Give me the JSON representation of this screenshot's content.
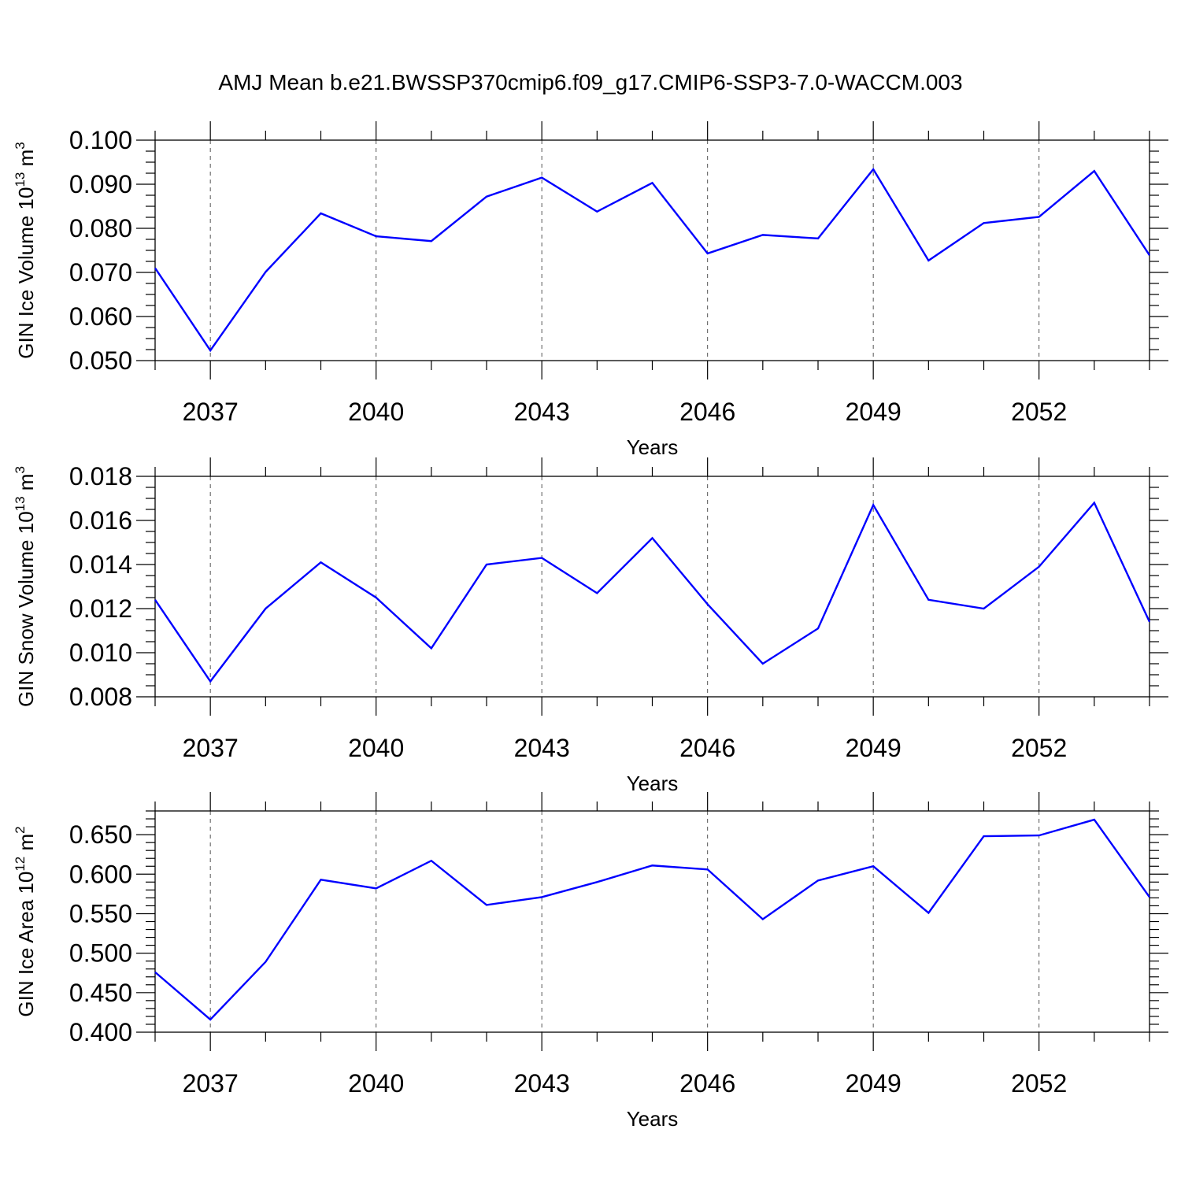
{
  "title": "AMJ Mean b.e21.BWSSP370cmip6.f09_g17.CMIP6-SSP3-7.0-WACCM.003",
  "colors": {
    "line": "#0000ff",
    "axis": "#000000",
    "grid": "#555555"
  },
  "chart_data": [
    {
      "type": "line",
      "ylabel": {
        "text": "GIN Ice Volume 10",
        "exp": "13",
        "unit": " m",
        "unit_exp": "3"
      },
      "xlabel": "Years",
      "xlim": [
        2036,
        2054
      ],
      "ylim": [
        0.05,
        0.1
      ],
      "x_ticks": [
        2037,
        2040,
        2043,
        2046,
        2049,
        2052
      ],
      "x_tick_labels": [
        "2037",
        "2040",
        "2043",
        "2046",
        "2049",
        "2052"
      ],
      "y_ticks": [
        0.05,
        0.06,
        0.07,
        0.08,
        0.09,
        0.1
      ],
      "y_tick_labels": [
        "0.050",
        "0.060",
        "0.070",
        "0.080",
        "0.090",
        "0.100"
      ],
      "y_minor_step": 0.0025,
      "grid": "vertical dashed at major x ticks",
      "series": [
        {
          "x": [
            2036,
            2037,
            2038,
            2039,
            2040,
            2041,
            2042,
            2043,
            2044,
            2045,
            2046,
            2047,
            2048,
            2049,
            2050,
            2051,
            2052,
            2053,
            2054
          ],
          "values": [
            0.071,
            0.0523,
            0.0701,
            0.0834,
            0.0782,
            0.0771,
            0.0872,
            0.0915,
            0.0838,
            0.0903,
            0.0743,
            0.0785,
            0.0777,
            0.0934,
            0.0727,
            0.0812,
            0.0826,
            0.093,
            0.0739
          ]
        }
      ]
    },
    {
      "type": "line",
      "ylabel": {
        "text": "GIN Snow Volume 10",
        "exp": "13",
        "unit": " m",
        "unit_exp": "3"
      },
      "xlabel": "Years",
      "xlim": [
        2036,
        2054
      ],
      "ylim": [
        0.008,
        0.018
      ],
      "x_ticks": [
        2037,
        2040,
        2043,
        2046,
        2049,
        2052
      ],
      "x_tick_labels": [
        "2037",
        "2040",
        "2043",
        "2046",
        "2049",
        "2052"
      ],
      "y_ticks": [
        0.008,
        0.01,
        0.012,
        0.014,
        0.016,
        0.018
      ],
      "y_tick_labels": [
        "0.008",
        "0.010",
        "0.012",
        "0.014",
        "0.016",
        "0.018"
      ],
      "y_minor_step": 0.0005,
      "grid": "vertical dashed at major x ticks",
      "series": [
        {
          "x": [
            2036,
            2037,
            2038,
            2039,
            2040,
            2041,
            2042,
            2043,
            2044,
            2045,
            2046,
            2047,
            2048,
            2049,
            2050,
            2051,
            2052,
            2053,
            2054
          ],
          "values": [
            0.0124,
            0.0087,
            0.012,
            0.0141,
            0.0125,
            0.0102,
            0.014,
            0.0143,
            0.0127,
            0.0152,
            0.0122,
            0.0095,
            0.0111,
            0.0167,
            0.0124,
            0.012,
            0.0139,
            0.0168,
            0.0114
          ]
        }
      ]
    },
    {
      "type": "line",
      "ylabel": {
        "text": "GIN Ice Area 10",
        "exp": "12",
        "unit": " m",
        "unit_exp": "2"
      },
      "xlabel": "Years",
      "xlim": [
        2036,
        2054
      ],
      "ylim": [
        0.4,
        0.68
      ],
      "x_ticks": [
        2037,
        2040,
        2043,
        2046,
        2049,
        2052
      ],
      "x_tick_labels": [
        "2037",
        "2040",
        "2043",
        "2046",
        "2049",
        "2052"
      ],
      "y_ticks": [
        0.4,
        0.45,
        0.5,
        0.55,
        0.6,
        0.65
      ],
      "y_tick_labels": [
        "0.400",
        "0.450",
        "0.500",
        "0.550",
        "0.600",
        "0.650"
      ],
      "y_minor_step": 0.01,
      "grid": "vertical dashed at major x ticks",
      "series": [
        {
          "x": [
            2036,
            2037,
            2038,
            2039,
            2040,
            2041,
            2042,
            2043,
            2044,
            2045,
            2046,
            2047,
            2048,
            2049,
            2050,
            2051,
            2052,
            2053,
            2054
          ],
          "values": [
            0.476,
            0.416,
            0.489,
            0.593,
            0.582,
            0.617,
            0.561,
            0.571,
            0.59,
            0.611,
            0.606,
            0.543,
            0.592,
            0.61,
            0.551,
            0.648,
            0.649,
            0.669,
            0.571
          ]
        }
      ]
    }
  ]
}
